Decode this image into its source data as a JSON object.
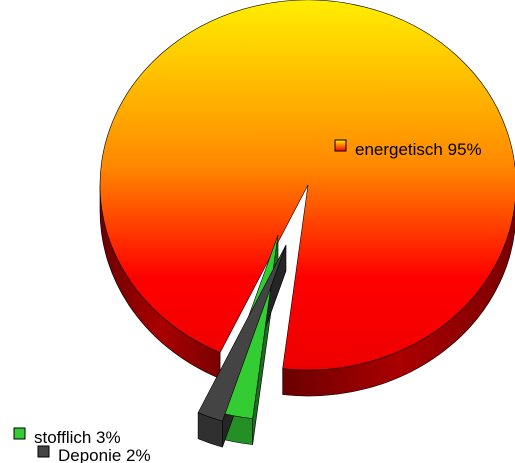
{
  "chart_data": {
    "type": "pie",
    "style": "3d-exploded",
    "categories": [
      "energetisch",
      "stofflich",
      "Deponie"
    ],
    "values": [
      95,
      3,
      2
    ],
    "labels": [
      "energetisch 95%",
      "stofflich 3%",
      "Deponie 2%"
    ],
    "colors": [
      "#ff2a00",
      "#33cc33",
      "#444444"
    ],
    "gradient_colors": [
      "#ffee00",
      "#ff0000"
    ],
    "title": "",
    "legend": "inline-labels"
  }
}
